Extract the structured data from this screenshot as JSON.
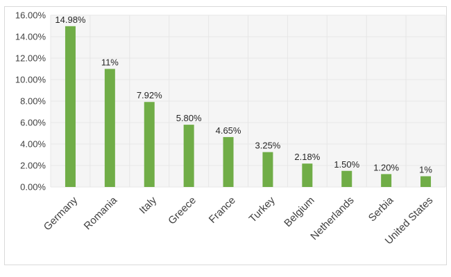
{
  "chart_data": {
    "type": "bar",
    "categories": [
      "Germany",
      "Romania",
      "Italy",
      "Greece",
      "France",
      "Turkey",
      "Belgium",
      "Netherlands",
      "Serbia",
      "United States"
    ],
    "values": [
      14.98,
      11,
      7.92,
      5.8,
      4.65,
      3.25,
      2.18,
      1.5,
      1.2,
      1
    ],
    "data_labels": [
      "14.98%",
      "11%",
      "7.92%",
      "5.80%",
      "4.65%",
      "3.25%",
      "2.18%",
      "1.50%",
      "1.20%",
      "1%"
    ],
    "title": "",
    "xlabel": "",
    "ylabel": "",
    "ylim": [
      0,
      16
    ],
    "yticks": [
      0,
      2,
      4,
      6,
      8,
      10,
      12,
      14,
      16
    ],
    "ytick_labels": [
      "0.00%",
      "2.00%",
      "4.00%",
      "6.00%",
      "8.00%",
      "10.00%",
      "12.00%",
      "14.00%",
      "16.00%"
    ],
    "grid": true,
    "legend": "none",
    "bar_color": "#70ad47",
    "grid_color": "#e6e6e6",
    "plot_background": "#f5f5f5"
  }
}
